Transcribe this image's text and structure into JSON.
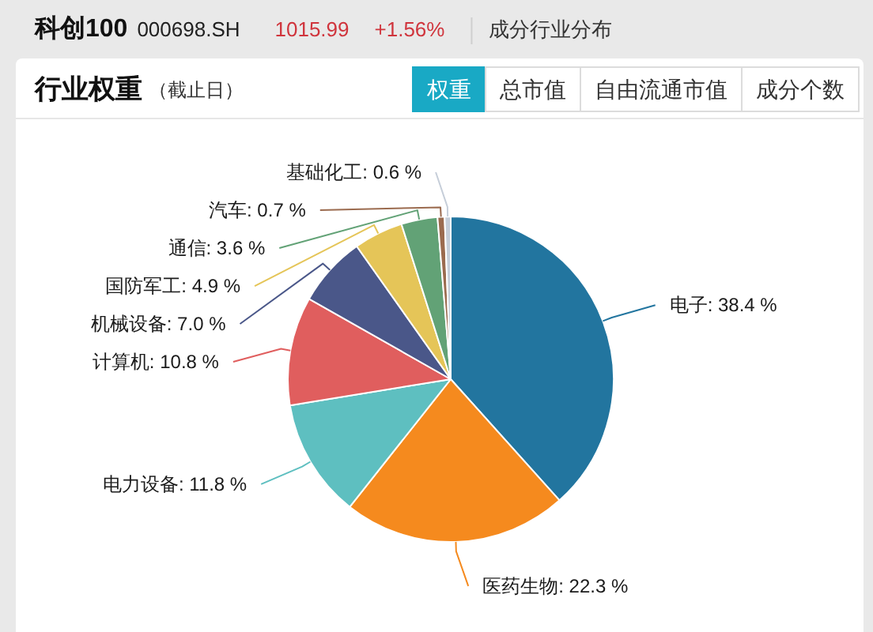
{
  "chart_data": {
    "type": "pie",
    "title": "行业权重",
    "subtitle": "（截止日）",
    "categories": [
      "电子",
      "医药生物",
      "电力设备",
      "计算机",
      "机械设备",
      "国防军工",
      "通信",
      "汽车",
      "基础化工"
    ],
    "values": [
      38.4,
      22.3,
      11.8,
      10.8,
      7.0,
      4.9,
      3.6,
      0.7,
      0.6
    ],
    "value_labels": [
      "38.4 %",
      "22.3 %",
      "11.8 %",
      "10.8 %",
      "7.0 %",
      "4.9 %",
      "3.6 %",
      "0.7 %",
      "0.6 %"
    ],
    "colors": [
      "#22759f",
      "#f58a1e",
      "#5ebfc0",
      "#e05e5e",
      "#4a5789",
      "#e5c558",
      "#62a276",
      "#9b6b4f",
      "#c6ced9"
    ],
    "annotations": [
      "科创100",
      "000698.SH",
      "1015.99",
      "+1.56%",
      "成分行业分布",
      "权重",
      "总市值",
      "自由流通市值",
      "成分个数"
    ]
  }
}
